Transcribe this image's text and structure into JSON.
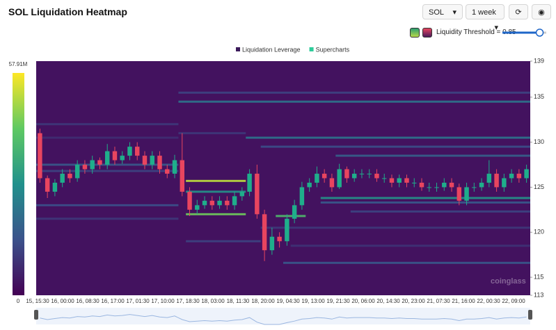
{
  "header": {
    "title": "SOL Liquidation Heatmap",
    "symbol": "SOL",
    "range": "1 week",
    "threshold_text": "Liquidity Threshold = 0.85",
    "threshold": 0.85
  },
  "chart_data": {
    "type": "candlestick",
    "legend": [
      "Liquidation Leverage",
      "Supercharts"
    ],
    "legend_colors": [
      "#3b1a5a",
      "#2ecc9a"
    ],
    "watermark": "coinglass",
    "up_color": "#1fae8b",
    "down_color": "#e8455f",
    "background": "#43125f",
    "colorscale": {
      "colors": [
        "#440154",
        "#3b528b",
        "#21918c",
        "#5ec962",
        "#fde725"
      ],
      "lim": [
        0,
        57.91
      ],
      "ticks": [
        0,
        {
          "value": 57.91,
          "label": "57.91M"
        }
      ]
    },
    "ylim": [
      113,
      139
    ],
    "yticks": [
      113,
      115,
      120,
      125,
      130,
      135,
      139
    ],
    "x_labels": [
      "15, 15:30",
      "16, 00:00",
      "16, 08:30",
      "16, 17:00",
      "17, 01:30",
      "17, 10:00",
      "17, 18:30",
      "18, 03:00",
      "18, 11:30",
      "18, 20:00",
      "19, 04:30",
      "19, 13:00",
      "19, 21:30",
      "20, 06:00",
      "20, 14:30",
      "20, 23:00",
      "21, 07:30",
      "21, 16:00",
      "22, 00:30",
      "22, 09:00"
    ],
    "open": [
      131,
      126,
      124.5,
      125.5,
      126.5,
      126,
      127.5,
      127,
      128,
      127.5,
      129,
      128,
      128.5,
      129.5,
      128.5,
      127.5,
      128.5,
      127,
      126.5,
      128,
      124.5,
      122.5,
      123,
      123.5,
      123,
      123.5,
      123,
      124,
      124.5,
      126.5,
      122,
      118,
      119.5,
      119,
      121.5,
      123,
      125,
      125.5,
      126.5,
      126,
      125,
      127,
      126,
      126.5,
      126.5,
      126.5,
      126,
      126,
      125.5,
      126,
      125.5,
      125.5,
      125,
      125,
      125,
      125.5,
      125,
      123.5,
      125,
      125,
      125.5,
      126.5,
      125,
      126,
      126.5,
      126
    ],
    "high": [
      131.5,
      126.3,
      125.9,
      127,
      127,
      128,
      128,
      128.5,
      128.3,
      129.8,
      129.5,
      129,
      130,
      130,
      129,
      129,
      129,
      127.5,
      128.6,
      131,
      125,
      123.6,
      124,
      124,
      124,
      124,
      124.5,
      125,
      127,
      127.5,
      122.5,
      120.5,
      120,
      122,
      123.6,
      125.6,
      126,
      127.3,
      127,
      126.5,
      127.6,
      127.3,
      127,
      127,
      127,
      127,
      126.5,
      126.4,
      126.4,
      126.4,
      126,
      126,
      125.5,
      125.5,
      126,
      126,
      125.4,
      125.5,
      125.5,
      126,
      128,
      127,
      126.5,
      127,
      127,
      127.5
    ],
    "low": [
      125.5,
      123.8,
      124,
      125,
      125.5,
      125.6,
      126.5,
      126.5,
      127,
      127,
      127.5,
      127.6,
      128,
      128,
      127,
      127,
      126.5,
      126,
      126,
      124,
      121.8,
      122,
      122.6,
      122.5,
      122.6,
      122.5,
      122.5,
      123.5,
      124,
      121.5,
      116.8,
      117.5,
      118.3,
      118.5,
      121,
      122.5,
      124.5,
      125,
      125.5,
      124.5,
      124.8,
      125.5,
      125.6,
      126,
      126,
      125.6,
      125.5,
      125,
      125,
      125,
      125,
      124.6,
      124.5,
      124.5,
      124.6,
      124.5,
      123,
      123,
      124.5,
      124.6,
      125,
      124.5,
      124.5,
      125.5,
      125.5,
      125.5
    ],
    "close": [
      126,
      124.5,
      125.5,
      126.5,
      126,
      127.5,
      127,
      128,
      127.5,
      129,
      128,
      128.5,
      129.5,
      128.5,
      127.5,
      128.5,
      127,
      126.5,
      128,
      124.5,
      122.5,
      123,
      123.5,
      123,
      123.5,
      123,
      124,
      124.5,
      126.5,
      122,
      118,
      119.5,
      119,
      121.5,
      123,
      125,
      125.5,
      126.5,
      126,
      125,
      127,
      126,
      126.5,
      126.5,
      126.5,
      126,
      126,
      125.5,
      126,
      125.5,
      125.5,
      125,
      125,
      125,
      125.5,
      125,
      123.5,
      125,
      125,
      125.5,
      126.5,
      125,
      126,
      126.5,
      126,
      127
    ],
    "levels": [
      {
        "price": 134.5,
        "start": 19,
        "end": 66,
        "value": 22
      },
      {
        "price": 135.5,
        "start": 19,
        "end": 66,
        "value": 12
      },
      {
        "price": 130.5,
        "start": 28,
        "end": 66,
        "value": 22
      },
      {
        "price": 131,
        "start": 19,
        "end": 28,
        "value": 10
      },
      {
        "price": 129.5,
        "start": 30,
        "end": 66,
        "value": 14
      },
      {
        "price": 128.5,
        "start": 40,
        "end": 66,
        "value": 18
      },
      {
        "price": 125.7,
        "start": 20,
        "end": 28,
        "value": 52
      },
      {
        "price": 124.5,
        "start": 20,
        "end": 28,
        "value": 30
      },
      {
        "price": 122,
        "start": 20,
        "end": 28,
        "value": 45
      },
      {
        "price": 119,
        "start": 20,
        "end": 30,
        "value": 12
      },
      {
        "price": 123.8,
        "start": 38,
        "end": 66,
        "value": 30
      },
      {
        "price": 123.3,
        "start": 38,
        "end": 66,
        "value": 16
      },
      {
        "price": 122.3,
        "start": 42,
        "end": 66,
        "value": 12
      },
      {
        "price": 120.5,
        "start": 30,
        "end": 66,
        "value": 10
      },
      {
        "price": 118.5,
        "start": 34,
        "end": 66,
        "value": 9
      },
      {
        "price": 116.6,
        "start": 33,
        "end": 66,
        "value": 16
      },
      {
        "price": 121.8,
        "start": 32,
        "end": 36,
        "value": 40
      },
      {
        "price": 132,
        "start": 0,
        "end": 19,
        "value": 10
      },
      {
        "price": 130.5,
        "start": 0,
        "end": 19,
        "value": 8
      },
      {
        "price": 127.5,
        "start": 0,
        "end": 19,
        "value": 16
      },
      {
        "price": 126.8,
        "start": 0,
        "end": 19,
        "value": 12
      },
      {
        "price": 123,
        "start": 0,
        "end": 19,
        "value": 14
      },
      {
        "price": 121.5,
        "start": 0,
        "end": 19,
        "value": 10
      }
    ]
  }
}
